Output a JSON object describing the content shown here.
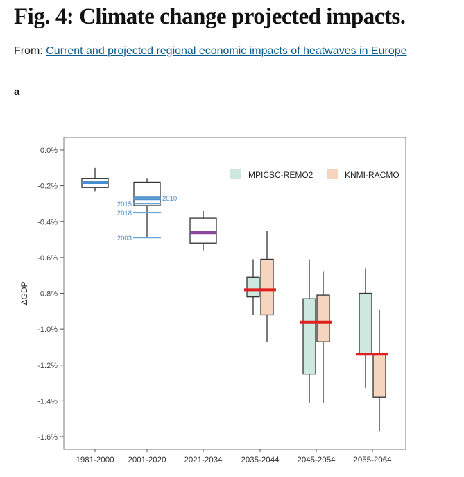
{
  "header": {
    "title": "Fig. 4: Climate change projected impacts.",
    "from_label": "From:",
    "from_link": "Current and projected regional economic impacts of heatwaves in Europe"
  },
  "panel": {
    "label": "a"
  },
  "colors": {
    "mpi_fill": "#cde8df",
    "knmi_fill": "#f6d5bf",
    "median_projection": "#e01f1f",
    "median_current": "#4a90d0",
    "median_2021": "#8b4aa0",
    "year_lines": "#6ea4d4",
    "box_stroke": "#333333"
  },
  "chart_data": {
    "type": "box",
    "ylabel": "ΔGDP",
    "xlabel": "",
    "ylim": [
      -1.6,
      0.0
    ],
    "yticks": [
      0.0,
      -0.2,
      -0.4,
      -0.6,
      -0.8,
      -1.0,
      -1.2,
      -1.4,
      -1.6
    ],
    "ytick_labels": [
      "0.0%",
      "-0.2%",
      "-0.4%",
      "-0.6%",
      "-0.8%",
      "-1.0%",
      "-1.2%",
      "-1.4%",
      "-1.6%"
    ],
    "categories": [
      "1981-2000",
      "2001-2020",
      "2021-2034",
      "2035-2044",
      "2045-2054",
      "2055-2064"
    ],
    "legend": {
      "position": "top-right",
      "entries": [
        {
          "label": "MPICSC-REMO2",
          "fill": "#cde8df"
        },
        {
          "label": "KNMI-RACMO",
          "fill": "#f6d5bf"
        }
      ]
    },
    "single_boxes": [
      {
        "category": "1981-2000",
        "whisker_low": -0.23,
        "q1": -0.21,
        "median": -0.18,
        "q3": -0.16,
        "whisker_high": -0.1,
        "median_color": "#4a90d0"
      },
      {
        "category": "2001-2020",
        "whisker_low": -0.49,
        "q1": -0.31,
        "median": -0.27,
        "q3": -0.18,
        "whisker_high": -0.16,
        "median_color": "#4a90d0"
      },
      {
        "category": "2021-2034",
        "whisker_low": -0.56,
        "q1": -0.52,
        "median": -0.46,
        "q3": -0.38,
        "whisker_high": -0.34,
        "median_color": "#8b4aa0"
      }
    ],
    "series": [
      {
        "name": "MPICSC-REMO2",
        "boxes": [
          {
            "category": "2035-2044",
            "whisker_low": -0.92,
            "q1": -0.82,
            "q3": -0.71,
            "whisker_high": -0.61
          },
          {
            "category": "2045-2054",
            "whisker_low": -1.41,
            "q1": -1.25,
            "q3": -0.83,
            "whisker_high": -0.61
          },
          {
            "category": "2055-2064",
            "whisker_low": -1.33,
            "q1": -1.14,
            "q3": -0.8,
            "whisker_high": -0.66
          }
        ]
      },
      {
        "name": "KNMI-RACMO",
        "boxes": [
          {
            "category": "2035-2044",
            "whisker_low": -1.07,
            "q1": -0.92,
            "q3": -0.61,
            "whisker_high": -0.45
          },
          {
            "category": "2045-2054",
            "whisker_low": -1.41,
            "q1": -1.07,
            "q3": -0.81,
            "whisker_high": -0.68
          },
          {
            "category": "2055-2064",
            "whisker_low": -1.57,
            "q1": -1.38,
            "q3": -1.14,
            "whisker_high": -0.89
          }
        ]
      }
    ],
    "pooled_medians": [
      {
        "category": "2035-2044",
        "value": -0.78
      },
      {
        "category": "2045-2054",
        "value": -0.96
      },
      {
        "category": "2055-2064",
        "value": -1.14
      }
    ],
    "year_markers": [
      {
        "category": "2001-2020",
        "label": "2010",
        "value": -0.27,
        "side": "right"
      },
      {
        "category": "2001-2020",
        "label": "2015",
        "value": -0.3,
        "side": "left"
      },
      {
        "category": "2001-2020",
        "label": "2018",
        "value": -0.35,
        "side": "left"
      },
      {
        "category": "2001-2020",
        "label": "2003",
        "value": -0.49,
        "side": "left"
      }
    ]
  }
}
